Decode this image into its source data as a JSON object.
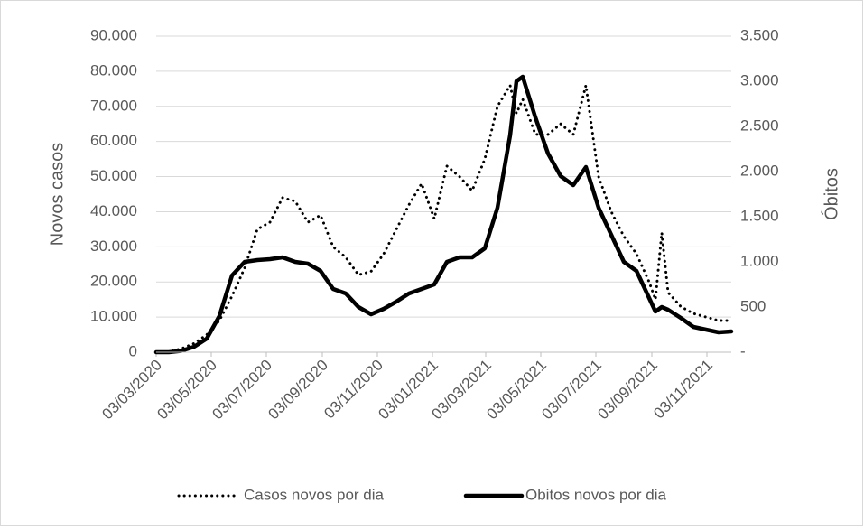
{
  "chart_data": {
    "type": "line",
    "x": [
      "03/03/2020",
      "17/03/2020",
      "31/03/2020",
      "14/04/2020",
      "28/04/2020",
      "12/05/2020",
      "26/05/2020",
      "09/06/2020",
      "23/06/2020",
      "07/07/2020",
      "21/07/2020",
      "04/08/2020",
      "18/08/2020",
      "01/09/2020",
      "15/09/2020",
      "29/09/2020",
      "13/10/2020",
      "27/10/2020",
      "10/11/2020",
      "24/11/2020",
      "08/12/2020",
      "22/12/2020",
      "05/01/2021",
      "19/01/2021",
      "02/02/2021",
      "16/02/2021",
      "02/03/2021",
      "16/03/2021",
      "30/03/2021",
      "06/04/2021",
      "13/04/2021",
      "27/04/2021",
      "11/05/2021",
      "25/05/2021",
      "08/06/2021",
      "22/06/2021",
      "06/07/2021",
      "20/07/2021",
      "03/08/2021",
      "17/08/2021",
      "31/08/2021",
      "07/09/2021",
      "14/09/2021",
      "21/09/2021",
      "05/10/2021",
      "19/10/2021",
      "02/11/2021",
      "16/11/2021",
      "30/11/2021"
    ],
    "series": [
      {
        "name": "Casos novos por dia",
        "color": "#000000",
        "style": "dotted",
        "values": [
          0,
          100,
          1000,
          2500,
          5000,
          9000,
          16000,
          24000,
          35000,
          37000,
          44000,
          43000,
          37000,
          39000,
          30000,
          27000,
          22000,
          23000,
          28000,
          35000,
          42000,
          48000,
          38000,
          53000,
          50000,
          46000,
          55000,
          70000,
          76000,
          68000,
          72000,
          62000,
          62000,
          65000,
          62000,
          76000,
          50000,
          40000,
          33000,
          28000,
          20000,
          15000,
          34000,
          17000,
          13000,
          11000,
          10000,
          9000,
          9000
        ]
      },
      {
        "name": "Obitos novos por dia",
        "color": "#000000",
        "style": "solid",
        "axis": "y2",
        "values": [
          0,
          0,
          15,
          60,
          150,
          400,
          850,
          1000,
          1020,
          1030,
          1050,
          1000,
          980,
          900,
          700,
          650,
          500,
          420,
          480,
          560,
          650,
          700,
          750,
          1000,
          1050,
          1050,
          1150,
          1600,
          2400,
          3000,
          3050,
          2600,
          2200,
          1950,
          1850,
          2050,
          1600,
          1300,
          1000,
          900,
          600,
          450,
          500,
          470,
          380,
          280,
          250,
          220,
          230
        ]
      }
    ],
    "xlim": [
      "03/03/2020",
      "30/11/2021"
    ],
    "xticks": [
      "03/03/2020",
      "03/05/2020",
      "03/07/2020",
      "03/09/2020",
      "03/11/2020",
      "03/01/2021",
      "03/03/2021",
      "03/05/2021",
      "03/07/2021",
      "03/09/2021",
      "03/11/2021"
    ],
    "ylabel": "Novos casos",
    "y2label": "Óbitos",
    "ylim": [
      0,
      90000
    ],
    "yticks": [
      0,
      {
        "value": 10000,
        "label": "10.000"
      },
      {
        "value": 20000,
        "label": "20.000"
      },
      {
        "value": 30000,
        "label": "30.000"
      },
      {
        "value": 40000,
        "label": "40.000"
      },
      {
        "value": 50000,
        "label": "50.000"
      },
      {
        "value": 60000,
        "label": "60.000"
      },
      {
        "value": 70000,
        "label": "70.000"
      },
      {
        "value": 80000,
        "label": "80.000"
      },
      {
        "value": 90000,
        "label": "90.000"
      }
    ],
    "y2lim": [
      0,
      3500
    ],
    "y2ticks": [
      {
        "value": 0,
        "label": "-"
      },
      500,
      {
        "value": 1000,
        "label": "1.000"
      },
      {
        "value": 1500,
        "label": "1.500"
      },
      {
        "value": 2000,
        "label": "2.000"
      },
      {
        "value": 2500,
        "label": "2.500"
      },
      {
        "value": 3000,
        "label": "3.000"
      },
      {
        "value": 3500,
        "label": "3.500"
      }
    ],
    "grid": true,
    "legend": "bottom"
  }
}
